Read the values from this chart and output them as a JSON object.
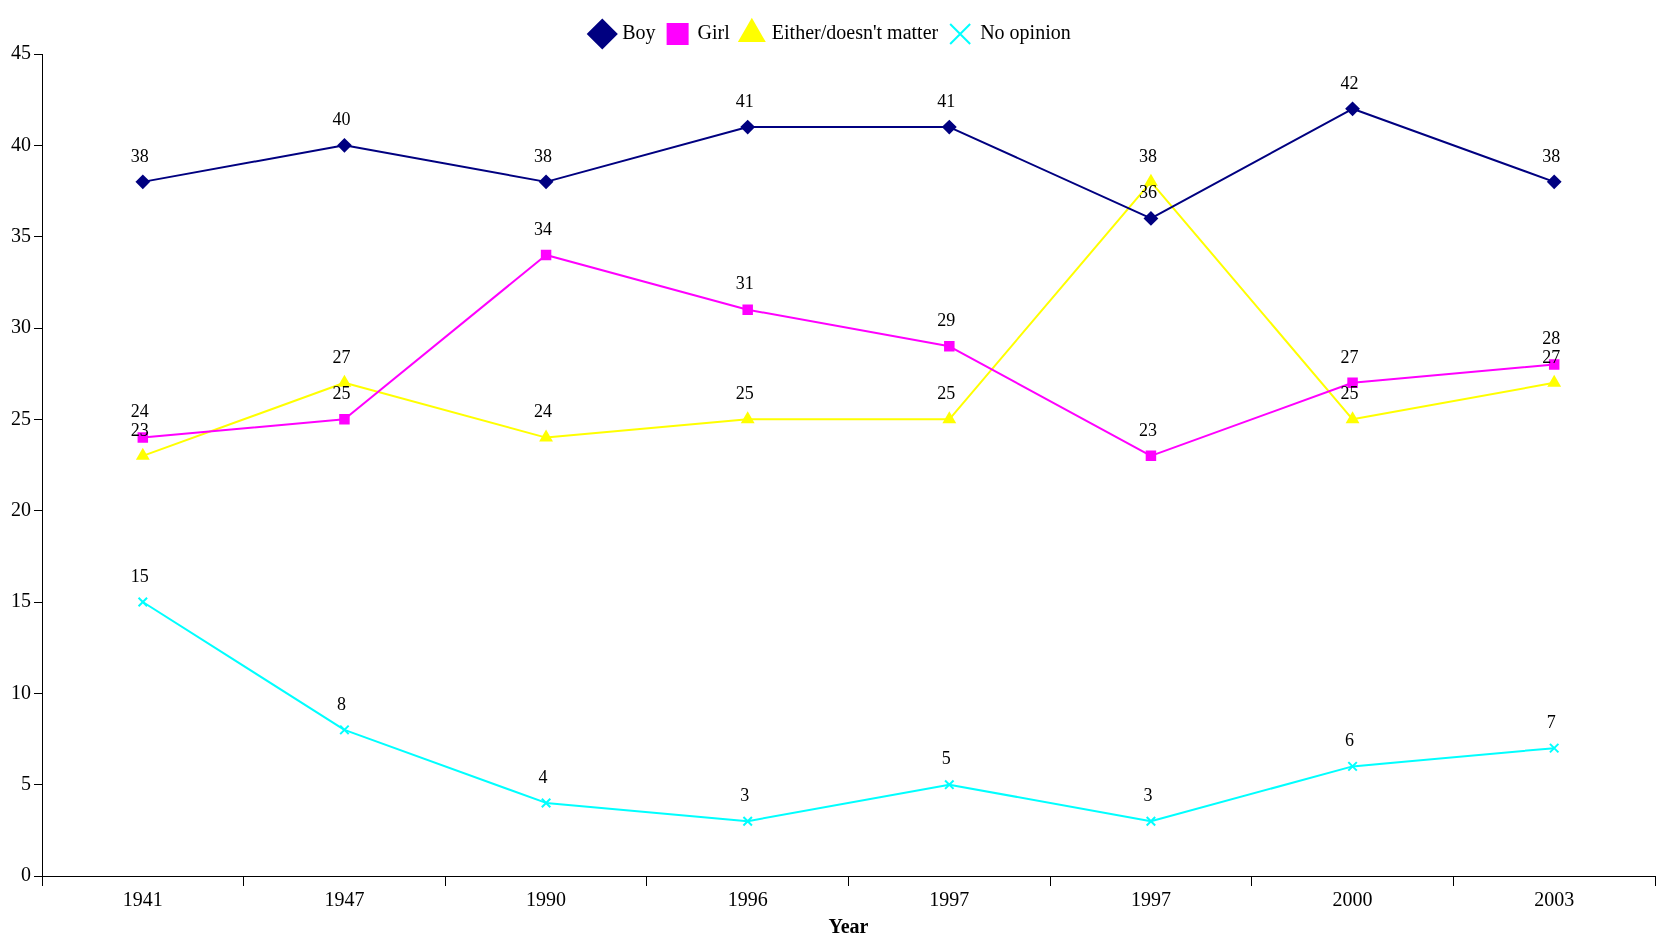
{
  "chart_data": {
    "type": "line",
    "xlabel": "Year",
    "categories": [
      "1941",
      "1947",
      "1990",
      "1996",
      "1997",
      "1997",
      "2000",
      "2003"
    ],
    "series": [
      {
        "name": "Boy",
        "color": "#000080",
        "marker": "diamond",
        "values": [
          38,
          40,
          38,
          41,
          41,
          36,
          42,
          38
        ]
      },
      {
        "name": "Girl",
        "color": "#ff00ff",
        "marker": "square",
        "values": [
          24,
          25,
          34,
          31,
          29,
          23,
          27,
          28
        ]
      },
      {
        "name": "Either/doesn't matter",
        "color": "#ffff00",
        "marker": "triangle",
        "values": [
          23,
          27,
          24,
          25,
          25,
          38,
          25,
          27
        ]
      },
      {
        "name": "No opinion",
        "color": "#00ffff",
        "marker": "cross",
        "values": [
          15,
          8,
          4,
          3,
          5,
          3,
          6,
          7
        ]
      }
    ],
    "ylim": [
      0,
      45
    ],
    "yticks": [
      0,
      5,
      10,
      15,
      20,
      25,
      30,
      35,
      40,
      45
    ],
    "grid": false,
    "legend": "top",
    "data_labels": true,
    "line_style": "solid"
  }
}
